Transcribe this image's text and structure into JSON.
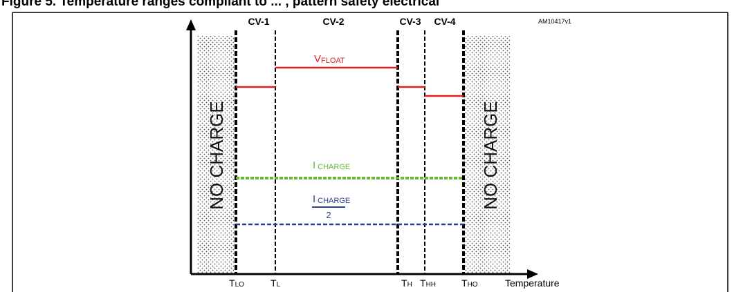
{
  "caption": "Figure 5. Temperature ranges compliant to ... , pattern safety electrical",
  "reference_id": "AM10417v1",
  "no_charge_left": "NO CHARGE",
  "no_charge_right": "NO CHARGE",
  "zones": [
    "CV-1",
    "CV-2",
    "CV-3",
    "CV-4"
  ],
  "lines": {
    "vfloat": {
      "main": "V",
      "sub": "FLOAT",
      "color": "#e02020"
    },
    "icharge": {
      "main": "I",
      "sub": "CHARGE",
      "color": "#66bb33"
    },
    "icharge_half": {
      "main": "I",
      "sub": "CHARGE",
      "denominator": "2",
      "color": "#2b3f8f"
    }
  },
  "thresholds": [
    {
      "main": "T",
      "sub": "LO"
    },
    {
      "main": "T",
      "sub": "L"
    },
    {
      "main": "T",
      "sub": "H"
    },
    {
      "main": "T",
      "sub": "HH"
    },
    {
      "main": "T",
      "sub": "HO"
    }
  ],
  "x_axis_label": "Temperature"
}
